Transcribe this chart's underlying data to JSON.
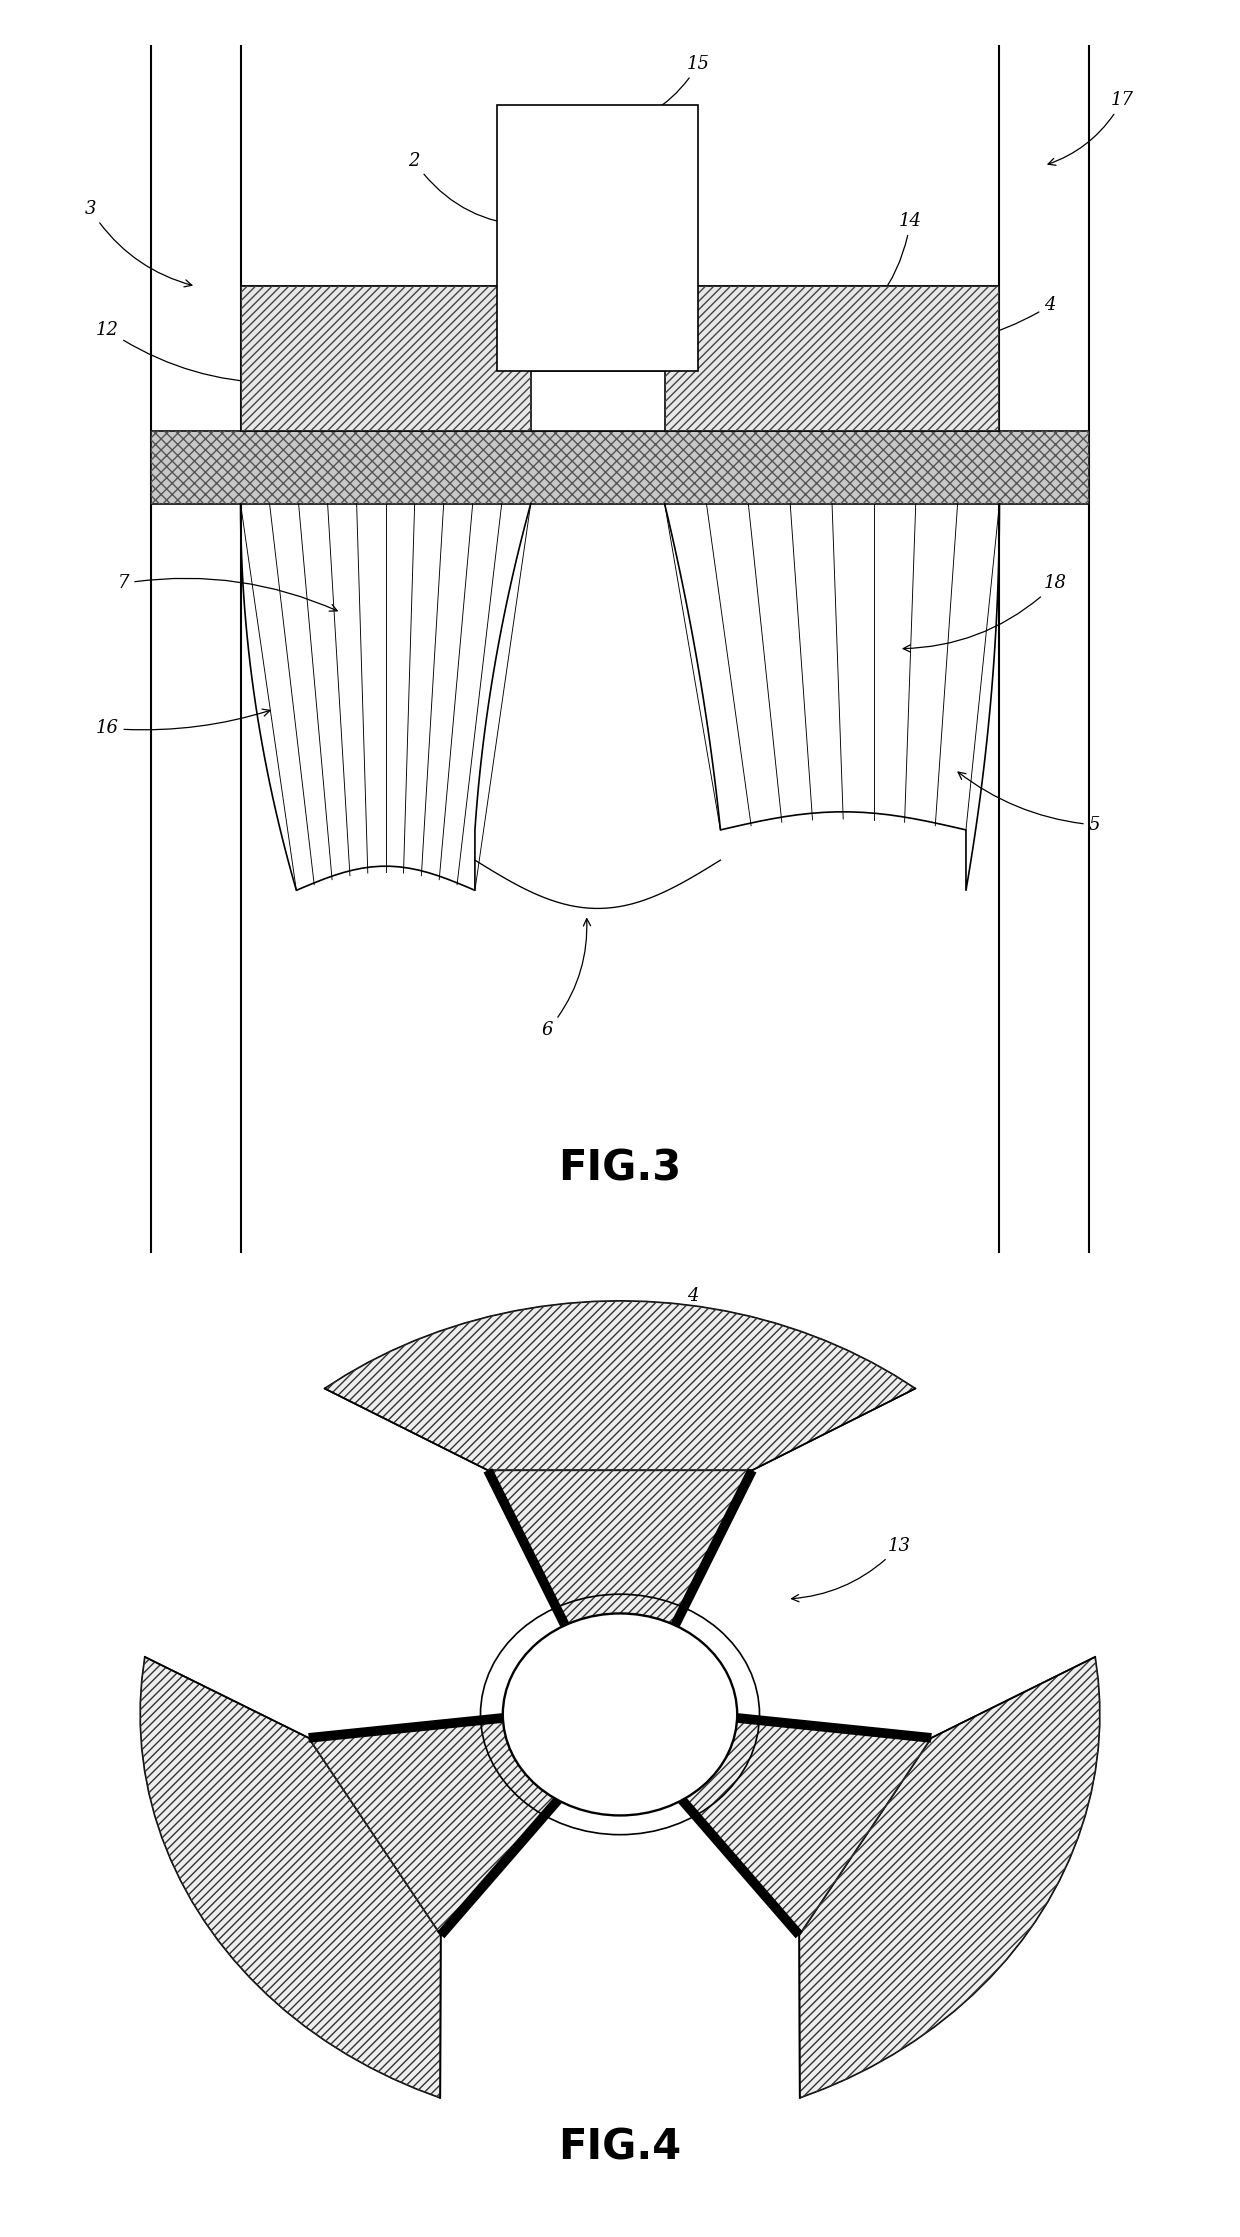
{
  "fig3_label": "FIG.3",
  "fig4_label": "FIG.4",
  "background": "#ffffff",
  "line_color": "#000000",
  "hatch_color": "#000000",
  "fontsize_label": 13,
  "fontsize_title": 30
}
